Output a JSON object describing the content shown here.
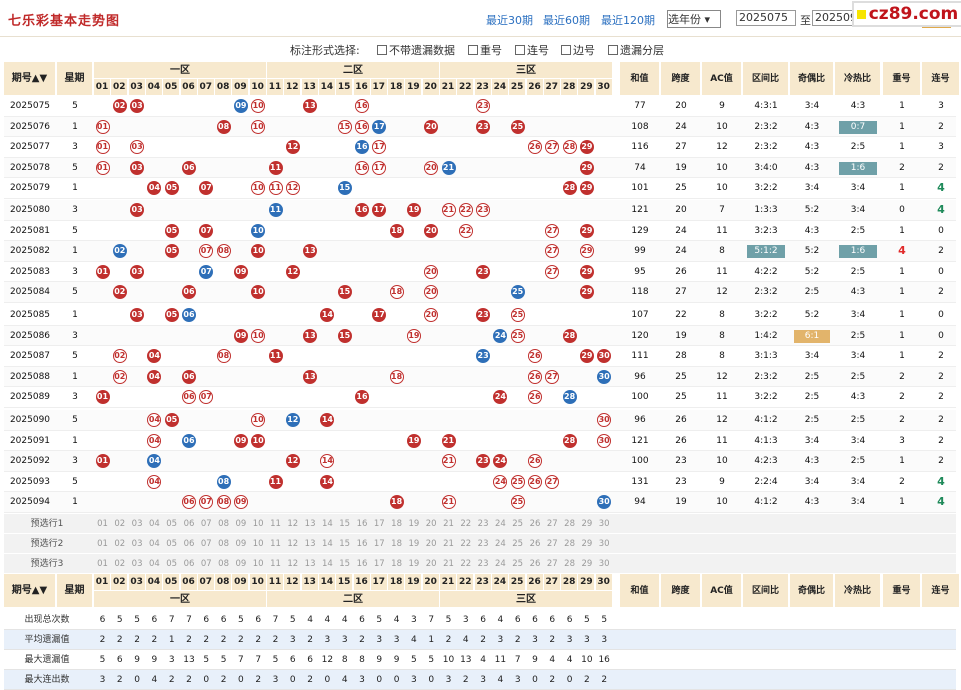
{
  "header": {
    "title": "七乐彩基本走势图",
    "links": [
      "最近30期",
      "最近60期",
      "最近120期"
    ],
    "year_select": "选年份",
    "from_period": "2025075",
    "to_label": "至",
    "to_period": "2025094",
    "period_label": "期",
    "query_button": "查看",
    "watermark": "cz89.com"
  },
  "options": {
    "label": "标注形式选择:",
    "items": [
      "不带遗漏数据",
      "重号",
      "连号",
      "边号",
      "遗漏分层"
    ]
  },
  "table_header": {
    "issue": "期号",
    "week": "星期",
    "zones": [
      "一区",
      "二区",
      "三区"
    ],
    "stats": [
      "和值",
      "跨度",
      "AC值",
      "区间比",
      "奇偶比",
      "冷热比",
      "重号",
      "连号"
    ]
  },
  "numbers": [
    "01",
    "02",
    "03",
    "04",
    "05",
    "06",
    "07",
    "08",
    "09",
    "10",
    "11",
    "12",
    "13",
    "14",
    "15",
    "16",
    "17",
    "18",
    "19",
    "20",
    "21",
    "22",
    "23",
    "24",
    "25",
    "26",
    "27",
    "28",
    "29",
    "30"
  ],
  "rows": [
    {
      "issue": "2025075",
      "week": "5",
      "balls": [
        2,
        3,
        9,
        10,
        13,
        16,
        23
      ],
      "blue": [
        9
      ],
      "ring": [
        10,
        16,
        23
      ],
      "sum": "77",
      "span": "20",
      "ac": "9",
      "qj": "4:3:1",
      "jo": "3:4",
      "lr": "4:3",
      "ch": "1",
      "lh": "3"
    },
    {
      "issue": "2025076",
      "week": "1",
      "balls": [
        1,
        8,
        10,
        15,
        16,
        17,
        20,
        23,
        25
      ],
      "blue": [
        17
      ],
      "ring": [
        1,
        10,
        15,
        16
      ],
      "sum": "108",
      "span": "24",
      "ac": "10",
      "qj": "2:3:2",
      "jo": "4:3",
      "lr": "0:7",
      "lr_hl": "t",
      "ch": "1",
      "lh": "2"
    },
    {
      "issue": "2025077",
      "week": "3",
      "balls": [
        1,
        3,
        12,
        16,
        17,
        26,
        27,
        28,
        29
      ],
      "blue": [
        16
      ],
      "ring": [
        1,
        3,
        17,
        26,
        27,
        28
      ],
      "sum": "116",
      "span": "27",
      "ac": "12",
      "qj": "2:3:2",
      "jo": "4:3",
      "lr": "2:5",
      "ch": "1",
      "lh": "3"
    },
    {
      "issue": "2025078",
      "week": "5",
      "balls": [
        1,
        3,
        6,
        11,
        16,
        17,
        20,
        21,
        29
      ],
      "blue": [
        21
      ],
      "ring": [
        1,
        16,
        17,
        20
      ],
      "sum": "74",
      "span": "19",
      "ac": "10",
      "qj": "3:4:0",
      "jo": "4:3",
      "lr": "1:6",
      "lr_hl": "t",
      "ch": "2",
      "lh": "2"
    },
    {
      "issue": "2025079",
      "week": "1",
      "balls": [
        4,
        5,
        7,
        10,
        11,
        12,
        15,
        28,
        29
      ],
      "blue": [
        15
      ],
      "ring": [
        10,
        11,
        12
      ],
      "sum": "101",
      "span": "25",
      "ac": "10",
      "qj": "3:2:2",
      "jo": "3:4",
      "lr": "3:4",
      "ch": "1",
      "lh": "4",
      "lh_hl": "g"
    },
    {
      "issue": "2025080",
      "week": "3",
      "balls": [
        3,
        11,
        16,
        17,
        19,
        21,
        22,
        23
      ],
      "blue": [
        11
      ],
      "ring": [
        21,
        22,
        23
      ],
      "sum": "121",
      "span": "20",
      "ac": "7",
      "qj": "1:3:3",
      "jo": "5:2",
      "lr": "3:4",
      "ch": "0",
      "lh": "4",
      "lh_hl": "g"
    },
    {
      "issue": "2025081",
      "week": "5",
      "balls": [
        5,
        7,
        10,
        18,
        20,
        22,
        27,
        29
      ],
      "blue": [
        10
      ],
      "ring": [
        22,
        27
      ],
      "sum": "129",
      "span": "24",
      "ac": "11",
      "qj": "3:2:3",
      "jo": "4:3",
      "lr": "2:5",
      "ch": "1",
      "lh": "0"
    },
    {
      "issue": "2025082",
      "week": "1",
      "balls": [
        2,
        5,
        7,
        8,
        10,
        13,
        27,
        29
      ],
      "blue": [
        2
      ],
      "ring": [
        7,
        8,
        27,
        29
      ],
      "sum": "99",
      "span": "24",
      "ac": "8",
      "qj": "5:1:2",
      "qj_hl": "t",
      "jo": "5:2",
      "lr": "1:6",
      "lr_hl": "t",
      "ch": "4",
      "ch_hl": "r",
      "lh": "2"
    },
    {
      "issue": "2025083",
      "week": "3",
      "balls": [
        1,
        3,
        7,
        9,
        12,
        20,
        23,
        27,
        29
      ],
      "blue": [
        7
      ],
      "ring": [
        20,
        27
      ],
      "sum": "95",
      "span": "26",
      "ac": "11",
      "qj": "4:2:2",
      "jo": "5:2",
      "lr": "2:5",
      "ch": "1",
      "lh": "0"
    },
    {
      "issue": "2025084",
      "week": "5",
      "balls": [
        2,
        6,
        10,
        15,
        18,
        20,
        25,
        29
      ],
      "blue": [
        25
      ],
      "ring": [
        18,
        20
      ],
      "sum": "118",
      "span": "27",
      "ac": "12",
      "qj": "2:3:2",
      "jo": "2:5",
      "lr": "4:3",
      "ch": "1",
      "lh": "2"
    },
    {
      "issue": "2025085",
      "week": "1",
      "balls": [
        3,
        5,
        6,
        14,
        17,
        20,
        23,
        25
      ],
      "blue": [
        6
      ],
      "ring": [
        20,
        25
      ],
      "sum": "107",
      "span": "22",
      "ac": "8",
      "qj": "3:2:2",
      "jo": "5:2",
      "lr": "3:4",
      "ch": "1",
      "lh": "0"
    },
    {
      "issue": "2025086",
      "week": "3",
      "balls": [
        9,
        10,
        13,
        15,
        19,
        24,
        25,
        28
      ],
      "blue": [
        24
      ],
      "ring": [
        10,
        19,
        25
      ],
      "sum": "120",
      "span": "19",
      "ac": "8",
      "qj": "1:4:2",
      "jo": "6:1",
      "jo_hl": "b",
      "lr": "2:5",
      "ch": "1",
      "lh": "0"
    },
    {
      "issue": "2025087",
      "week": "5",
      "balls": [
        2,
        4,
        8,
        11,
        23,
        26,
        29,
        30
      ],
      "blue": [
        23
      ],
      "ring": [
        2,
        8,
        26
      ],
      "sum": "111",
      "span": "28",
      "ac": "8",
      "qj": "3:1:3",
      "jo": "3:4",
      "lr": "3:4",
      "ch": "1",
      "lh": "2"
    },
    {
      "issue": "2025088",
      "week": "1",
      "balls": [
        2,
        4,
        6,
        13,
        18,
        26,
        27,
        30
      ],
      "blue": [
        30
      ],
      "ring": [
        2,
        18,
        26,
        27
      ],
      "sum": "96",
      "span": "25",
      "ac": "12",
      "qj": "2:3:2",
      "jo": "2:5",
      "lr": "2:5",
      "ch": "2",
      "lh": "2"
    },
    {
      "issue": "2025089",
      "week": "3",
      "balls": [
        1,
        6,
        7,
        16,
        24,
        26,
        28
      ],
      "blue": [
        28
      ],
      "ring": [
        6,
        7,
        26
      ],
      "sum": "100",
      "span": "25",
      "ac": "11",
      "qj": "3:2:2",
      "jo": "2:5",
      "lr": "4:3",
      "ch": "2",
      "lh": "2"
    },
    {
      "issue": "2025090",
      "week": "5",
      "balls": [
        4,
        5,
        10,
        12,
        14,
        30
      ],
      "blue": [
        12
      ],
      "ring": [
        4,
        10,
        30
      ],
      "sum": "96",
      "span": "26",
      "ac": "12",
      "qj": "4:1:2",
      "jo": "2:5",
      "lr": "2:5",
      "ch": "2",
      "lh": "2"
    },
    {
      "issue": "2025091",
      "week": "1",
      "balls": [
        4,
        6,
        9,
        10,
        19,
        21,
        28,
        30
      ],
      "blue": [
        6
      ],
      "ring": [
        4,
        30
      ],
      "sum": "121",
      "span": "26",
      "ac": "11",
      "qj": "4:1:3",
      "jo": "3:4",
      "lr": "3:4",
      "ch": "3",
      "lh": "2"
    },
    {
      "issue": "2025092",
      "week": "3",
      "balls": [
        1,
        4,
        12,
        14,
        21,
        23,
        24,
        26
      ],
      "blue": [
        4
      ],
      "ring": [
        14,
        21,
        26
      ],
      "sum": "100",
      "span": "23",
      "ac": "10",
      "qj": "4:2:3",
      "jo": "4:3",
      "lr": "2:5",
      "ch": "1",
      "lh": "2"
    },
    {
      "issue": "2025093",
      "week": "5",
      "balls": [
        4,
        8,
        11,
        14,
        24,
        25,
        26,
        27
      ],
      "blue": [
        8
      ],
      "ring": [
        4,
        24,
        25,
        26,
        27
      ],
      "sum": "131",
      "span": "23",
      "ac": "9",
      "qj": "2:2:4",
      "jo": "3:4",
      "lr": "3:4",
      "ch": "2",
      "lh": "4",
      "lh_hl": "g"
    },
    {
      "issue": "2025094",
      "week": "1",
      "balls": [
        6,
        7,
        8,
        9,
        18,
        21,
        25,
        30
      ],
      "blue": [
        30
      ],
      "ring": [
        6,
        7,
        8,
        9,
        21,
        25
      ],
      "sum": "94",
      "span": "19",
      "ac": "10",
      "qj": "4:1:2",
      "jo": "4:3",
      "lr": "3:4",
      "ch": "1",
      "lh": "4",
      "lh_hl": "g"
    }
  ],
  "pre_rows": [
    "预选行1",
    "预选行2",
    "预选行3"
  ],
  "footer_stats": [
    {
      "label": "出现总次数",
      "values": [
        "6",
        "5",
        "5",
        "6",
        "7",
        "7",
        "6",
        "6",
        "5",
        "6",
        "7",
        "5",
        "4",
        "4",
        "4",
        "6",
        "5",
        "4",
        "3",
        "7",
        "5",
        "3",
        "6",
        "4",
        "6",
        "6",
        "6",
        "6",
        "5",
        "5"
      ]
    },
    {
      "label": "平均遗漏值",
      "values": [
        "2",
        "2",
        "2",
        "2",
        "1",
        "2",
        "2",
        "2",
        "2",
        "2",
        "2",
        "3",
        "2",
        "3",
        "3",
        "2",
        "3",
        "3",
        "4",
        "1",
        "2",
        "4",
        "2",
        "3",
        "2",
        "3",
        "2",
        "3",
        "3",
        "3"
      ]
    },
    {
      "label": "最大遗漏值",
      "values": [
        "5",
        "6",
        "9",
        "9",
        "3",
        "13",
        "5",
        "5",
        "7",
        "7",
        "5",
        "6",
        "6",
        "12",
        "8",
        "8",
        "9",
        "9",
        "5",
        "5",
        "10",
        "13",
        "4",
        "11",
        "7",
        "9",
        "4",
        "4",
        "10",
        "16"
      ]
    },
    {
      "label": "最大连出数",
      "values": [
        "3",
        "2",
        "0",
        "4",
        "2",
        "2",
        "0",
        "2",
        "0",
        "2",
        "3",
        "0",
        "2",
        "0",
        "4",
        "3",
        "0",
        "0",
        "3",
        "0",
        "3",
        "2",
        "3",
        "4",
        "3",
        "0",
        "2",
        "0",
        "2",
        "2"
      ]
    }
  ]
}
